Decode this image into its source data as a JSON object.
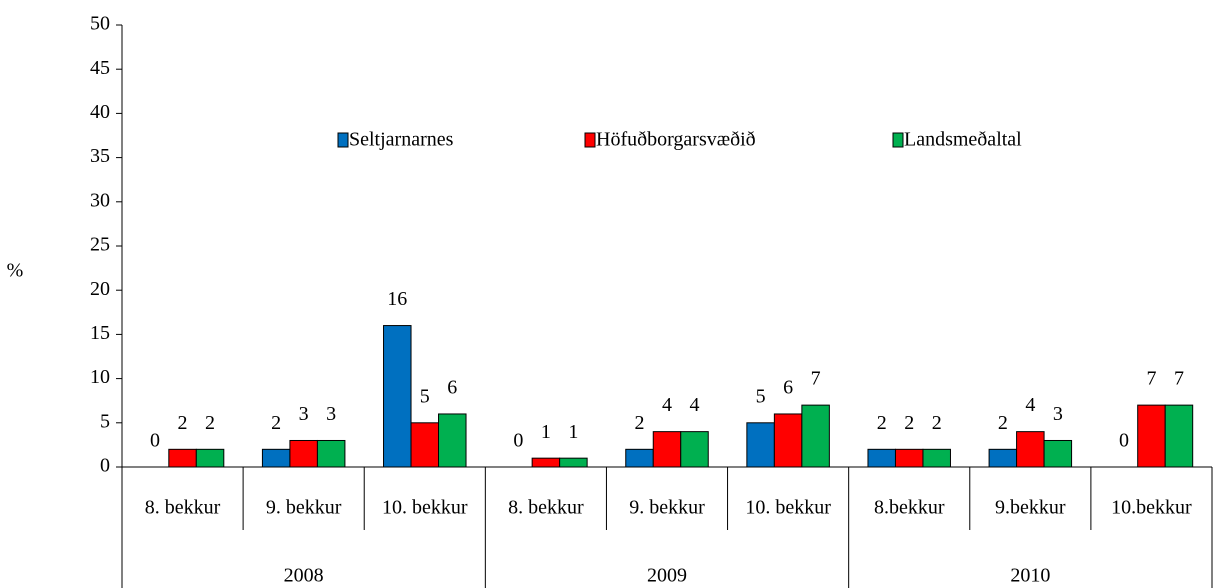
{
  "chart_data": {
    "type": "bar",
    "y_label": "%",
    "categories": [
      "8. bekkur",
      "9. bekkur",
      "10. bekkur",
      "8. bekkur",
      "9. bekkur",
      "10. bekkur",
      "8.bekkur",
      "9.bekkur",
      "10.bekkur"
    ],
    "category_groups": [
      "2008",
      "2009",
      "2010"
    ],
    "series": [
      {
        "name": "Seltjarnarnes",
        "color": "#0070c0",
        "values": [
          0,
          2,
          16,
          0,
          2,
          5,
          2,
          2,
          0
        ]
      },
      {
        "name": "Höfuðborgarsvæðið",
        "color": "#ff0000",
        "values": [
          2,
          3,
          5,
          1,
          4,
          6,
          2,
          4,
          7
        ]
      },
      {
        "name": "Landsmeðaltal",
        "color": "#00b050",
        "values": [
          2,
          3,
          6,
          1,
          4,
          7,
          2,
          3,
          7
        ]
      }
    ],
    "ylim": [
      0,
      50
    ],
    "yticks": [
      0,
      5,
      10,
      15,
      20,
      25,
      30,
      35,
      40,
      45,
      50
    ],
    "grid": false,
    "legend": "top"
  }
}
